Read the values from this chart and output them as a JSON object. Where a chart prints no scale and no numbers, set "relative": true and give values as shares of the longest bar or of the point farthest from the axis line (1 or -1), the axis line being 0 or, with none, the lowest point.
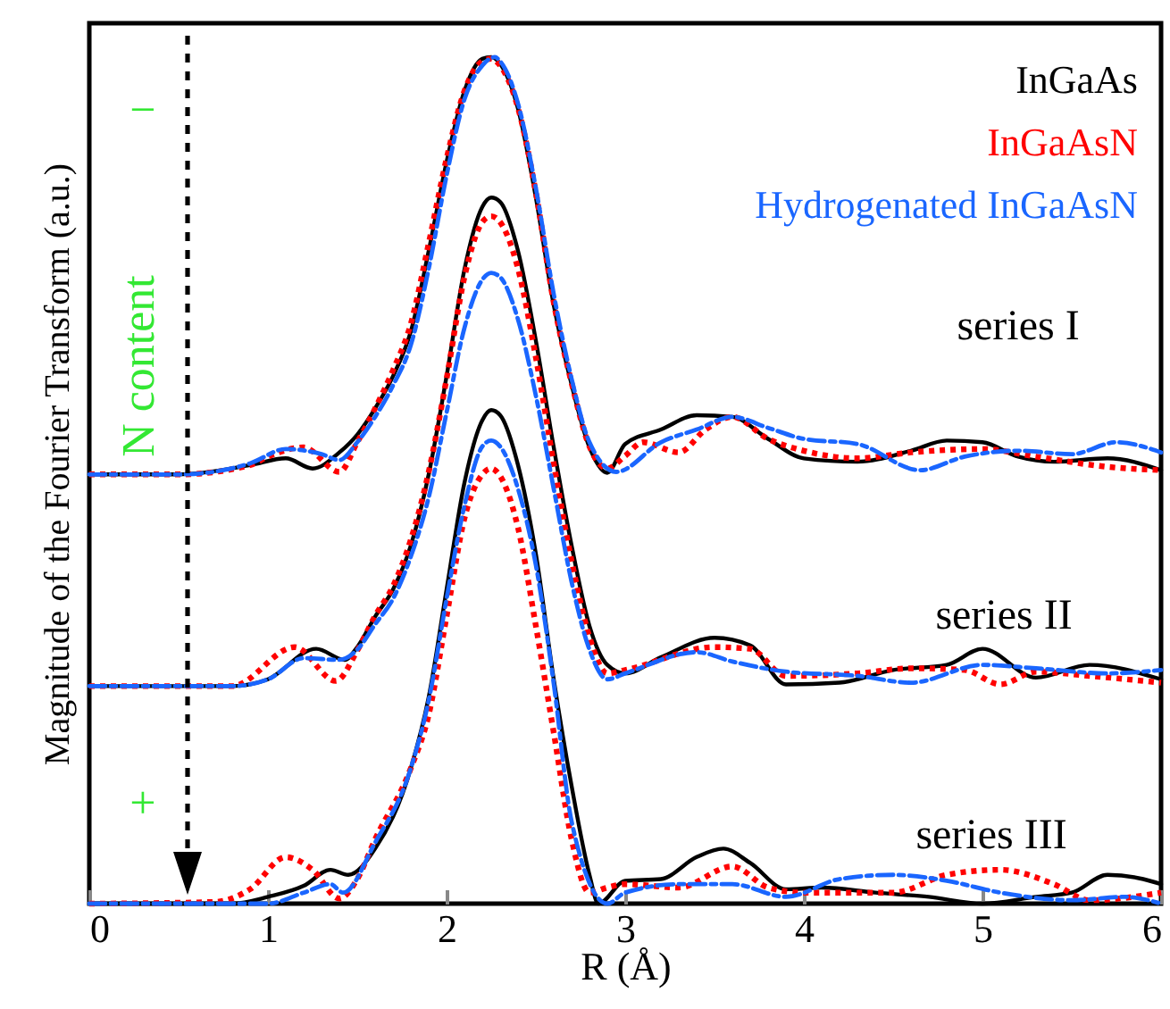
{
  "chart_data": {
    "type": "line",
    "xlabel": "R (Å)",
    "ylabel": "Magnitude of the Fourier Transform (a.u.)",
    "relative": true,
    "xlim": [
      0,
      6
    ],
    "xticks": [
      0,
      1,
      2,
      3,
      4,
      5,
      6
    ],
    "legend": "top right",
    "grid": false,
    "series": [
      {
        "name": "InGaAs",
        "color": "#000000",
        "line_style": "solid",
        "x": [
          0,
          0.5,
          0.9,
          1.1,
          1.25,
          1.4,
          1.5,
          1.6,
          1.7,
          1.8,
          1.9,
          2.0,
          2.1,
          2.2,
          2.25,
          2.3,
          2.4,
          2.5,
          2.6,
          2.7,
          2.8,
          2.9,
          3.0,
          3.2,
          3.4,
          3.6,
          3.8,
          4.0,
          4.3,
          4.6,
          4.8,
          5.0,
          5.2,
          5.4,
          5.7,
          6.0
        ],
        "values": [
          0.507,
          0.507,
          0.518,
          0.526,
          0.514,
          0.533,
          0.554,
          0.585,
          0.623,
          0.676,
          0.771,
          0.876,
          0.96,
          0.998,
          1,
          0.992,
          0.939,
          0.834,
          0.707,
          0.613,
          0.539,
          0.509,
          0.543,
          0.56,
          0.577,
          0.575,
          0.549,
          0.526,
          0.522,
          0.535,
          0.547,
          0.545,
          0.528,
          0.522,
          0.526,
          0.512
        ]
      },
      {
        "name": "InGaAsN",
        "color": "#ff0000",
        "line_style": "dotted",
        "x": [
          0,
          0.5,
          0.9,
          1.0,
          1.2,
          1.4,
          1.5,
          1.6,
          1.7,
          1.8,
          1.9,
          2.0,
          2.1,
          2.2,
          2.25,
          2.3,
          2.4,
          2.5,
          2.6,
          2.7,
          2.8,
          2.9,
          3.0,
          3.1,
          3.3,
          3.45,
          3.6,
          3.8,
          4.0,
          4.3,
          4.6,
          5.0,
          5.3,
          5.7,
          6.0
        ],
        "values": [
          0.507,
          0.507,
          0.518,
          0.528,
          0.539,
          0.51,
          0.545,
          0.585,
          0.63,
          0.685,
          0.78,
          0.88,
          0.96,
          0.995,
          0.998,
          0.99,
          0.94,
          0.84,
          0.71,
          0.615,
          0.54,
          0.514,
          0.529,
          0.545,
          0.533,
          0.56,
          0.575,
          0.549,
          0.535,
          0.526,
          0.533,
          0.537,
          0.528,
          0.516,
          0.512
        ]
      },
      {
        "name": "Hydrogenated InGaAsN",
        "color": "#1a66ff",
        "line_style": "dashed",
        "x": [
          0,
          0.5,
          0.9,
          1.1,
          1.3,
          1.4,
          1.5,
          1.6,
          1.7,
          1.8,
          1.9,
          2.0,
          2.1,
          2.2,
          2.27,
          2.3,
          2.4,
          2.5,
          2.6,
          2.7,
          2.8,
          2.95,
          3.2,
          3.4,
          3.6,
          3.8,
          4.0,
          4.3,
          4.65,
          4.9,
          5.2,
          5.5,
          5.75,
          6.0
        ],
        "values": [
          0.507,
          0.507,
          0.52,
          0.537,
          0.531,
          0.524,
          0.545,
          0.575,
          0.612,
          0.66,
          0.75,
          0.86,
          0.95,
          0.99,
          1,
          0.995,
          0.945,
          0.845,
          0.72,
          0.62,
          0.545,
          0.51,
          0.545,
          0.56,
          0.575,
          0.562,
          0.549,
          0.543,
          0.512,
          0.528,
          0.535,
          0.531,
          0.545,
          0.533
        ]
      },
      {
        "color": "#000000",
        "line_style": "solid",
        "x": [
          0,
          0.8,
          1.0,
          1.27,
          1.43,
          1.5,
          1.6,
          1.7,
          1.8,
          1.9,
          2.0,
          2.1,
          2.2,
          2.25,
          2.3,
          2.4,
          2.5,
          2.6,
          2.7,
          2.8,
          2.9,
          3.0,
          3.2,
          3.5,
          3.7,
          3.9,
          4.2,
          4.5,
          4.8,
          5.0,
          5.3,
          5.6,
          6.0
        ],
        "values": [
          0.257,
          0.257,
          0.265,
          0.301,
          0.288,
          0.303,
          0.339,
          0.371,
          0.423,
          0.507,
          0.623,
          0.749,
          0.823,
          0.834,
          0.829,
          0.771,
          0.665,
          0.539,
          0.423,
          0.328,
          0.282,
          0.272,
          0.291,
          0.314,
          0.305,
          0.259,
          0.261,
          0.276,
          0.282,
          0.301,
          0.267,
          0.282,
          0.265
        ]
      },
      {
        "color": "#ff0000",
        "line_style": "dotted",
        "x": [
          0,
          0.8,
          1.15,
          1.38,
          1.5,
          1.6,
          1.7,
          1.8,
          1.9,
          2.0,
          2.1,
          2.2,
          2.25,
          2.3,
          2.4,
          2.5,
          2.6,
          2.7,
          2.8,
          2.9,
          3.0,
          3.5,
          3.7,
          3.9,
          4.3,
          4.6,
          4.9,
          5.1,
          5.3,
          5.6,
          6.0
        ],
        "values": [
          0.257,
          0.257,
          0.303,
          0.263,
          0.299,
          0.34,
          0.375,
          0.43,
          0.51,
          0.62,
          0.74,
          0.805,
          0.812,
          0.805,
          0.75,
          0.645,
          0.52,
          0.405,
          0.315,
          0.272,
          0.276,
          0.303,
          0.301,
          0.269,
          0.272,
          0.278,
          0.276,
          0.259,
          0.274,
          0.269,
          0.261
        ]
      },
      {
        "color": "#1a66ff",
        "line_style": "dashed",
        "x": [
          0,
          0.8,
          1.0,
          1.2,
          1.4,
          1.5,
          1.6,
          1.7,
          1.8,
          1.9,
          2.0,
          2.1,
          2.2,
          2.25,
          2.3,
          2.4,
          2.5,
          2.6,
          2.7,
          2.8,
          2.9,
          3.0,
          3.4,
          3.6,
          3.9,
          4.3,
          4.6,
          5.0,
          5.3,
          5.7,
          6.0
        ],
        "values": [
          0.257,
          0.257,
          0.265,
          0.29,
          0.288,
          0.3,
          0.33,
          0.36,
          0.41,
          0.48,
          0.58,
          0.68,
          0.737,
          0.745,
          0.74,
          0.69,
          0.6,
          0.49,
          0.38,
          0.3,
          0.265,
          0.272,
          0.297,
          0.286,
          0.274,
          0.269,
          0.261,
          0.282,
          0.278,
          0.272,
          0.276
        ]
      },
      {
        "color": "#000000",
        "line_style": "solid",
        "x": [
          0,
          0.8,
          1.0,
          1.2,
          1.35,
          1.45,
          1.6,
          1.8,
          1.9,
          2.0,
          2.1,
          2.2,
          2.25,
          2.3,
          2.4,
          2.5,
          2.6,
          2.7,
          2.8,
          2.85,
          3.0,
          3.2,
          3.4,
          3.55,
          3.7,
          3.9,
          4.1,
          4.4,
          4.7,
          5.0,
          5.3,
          5.5,
          5.7,
          5.9,
          6.0
        ],
        "values": [
          0,
          0,
          0.008,
          0.021,
          0.04,
          0.034,
          0.065,
          0.16,
          0.244,
          0.371,
          0.497,
          0.571,
          0.583,
          0.577,
          0.518,
          0.413,
          0.265,
          0.139,
          0.034,
          0,
          0.027,
          0.029,
          0.055,
          0.065,
          0.048,
          0.017,
          0.019,
          0.013,
          0.008,
          0,
          0.008,
          0.013,
          0.034,
          0.029,
          0.023
        ]
      },
      {
        "color": "#ff0000",
        "line_style": "dotted",
        "x": [
          0,
          0.7,
          0.9,
          1.1,
          1.25,
          1.4,
          1.5,
          1.6,
          1.8,
          1.9,
          2.0,
          2.1,
          2.2,
          2.25,
          2.3,
          2.4,
          2.5,
          2.6,
          2.7,
          2.8,
          2.9,
          3.0,
          3.3,
          3.6,
          3.8,
          4.0,
          4.5,
          4.8,
          5.1,
          5.4,
          5.6,
          6.0
        ],
        "values": [
          0,
          0.002,
          0.017,
          0.055,
          0.04,
          0.006,
          0.029,
          0.076,
          0.16,
          0.223,
          0.339,
          0.455,
          0.507,
          0.514,
          0.505,
          0.444,
          0.328,
          0.202,
          0.076,
          0.013,
          0.019,
          0.023,
          0.019,
          0.044,
          0.019,
          0.013,
          0.013,
          0.034,
          0.04,
          0.023,
          0.004,
          0.013
        ]
      },
      {
        "color": "#1a66ff",
        "line_style": "dashed",
        "x": [
          0,
          1.0,
          1.2,
          1.35,
          1.42,
          1.6,
          1.8,
          1.9,
          2.0,
          2.1,
          2.2,
          2.25,
          2.3,
          2.4,
          2.5,
          2.6,
          2.7,
          2.9,
          3.0,
          3.3,
          3.6,
          3.9,
          4.2,
          4.5,
          4.8,
          5.1,
          5.5,
          5.8,
          6.0
        ],
        "values": [
          0,
          0,
          0.013,
          0.023,
          0.013,
          0.072,
          0.16,
          0.24,
          0.36,
          0.47,
          0.54,
          0.547,
          0.54,
          0.49,
          0.4,
          0.26,
          0.097,
          0,
          0.013,
          0.023,
          0.023,
          0.008,
          0.029,
          0.034,
          0.027,
          0.013,
          0.004,
          0.008,
          0
        ]
      }
    ],
    "annotations": [
      "series I",
      "series II",
      "series III",
      "−",
      "N content",
      "+"
    ]
  }
}
